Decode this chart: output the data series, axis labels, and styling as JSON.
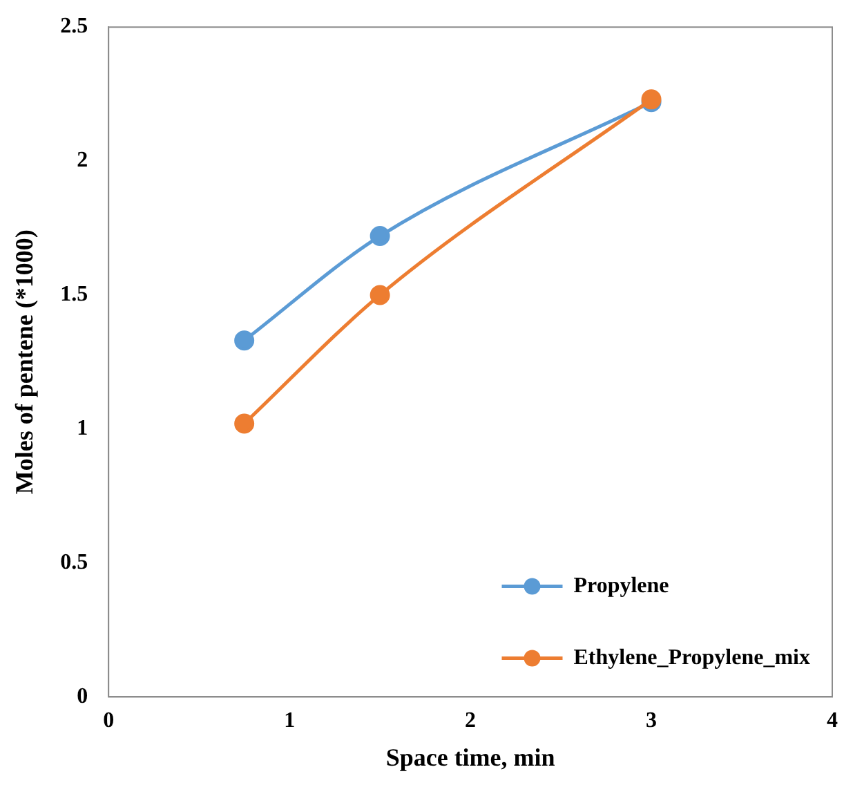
{
  "chart_data": {
    "type": "line",
    "xlabel": "Space time, min",
    "ylabel": "Moles of pentene (*1000)",
    "xlim": [
      0,
      4
    ],
    "xticks": [
      0,
      1,
      2,
      3,
      4
    ],
    "ylim": [
      0,
      2.5
    ],
    "yticks": [
      0,
      0.5,
      1,
      1.5,
      2,
      2.5
    ],
    "grid": false,
    "legend": "bottom right",
    "marker": "circle",
    "line_style": "solid",
    "series": [
      {
        "name": "Propylene",
        "color": "#5b9bd5",
        "x": [
          0.75,
          1.5,
          3
        ],
        "values": [
          1.33,
          1.72,
          2.22
        ]
      },
      {
        "name": "Ethylene_Propylene_mix",
        "color": "#ed7d31",
        "x": [
          0.75,
          1.5,
          3
        ],
        "values": [
          1.02,
          1.5,
          2.23
        ]
      }
    ]
  }
}
